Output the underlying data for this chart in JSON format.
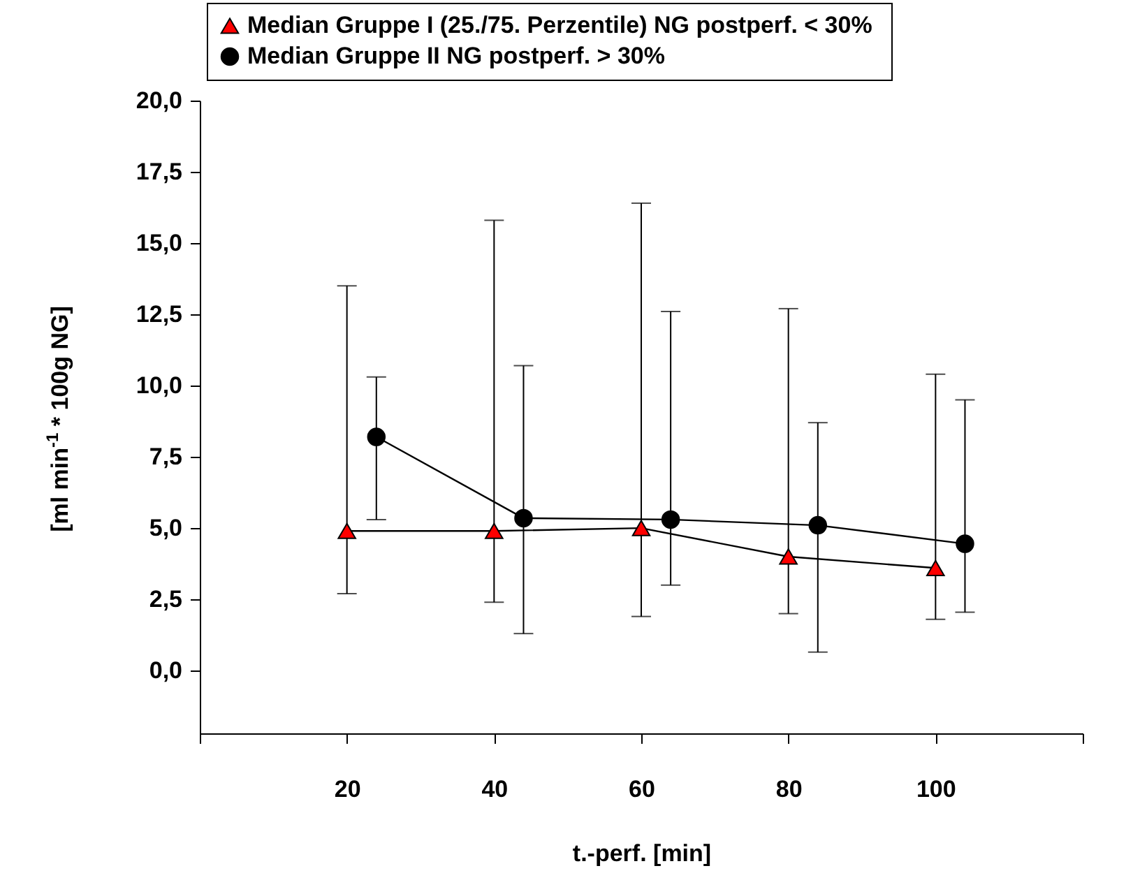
{
  "chart_data": {
    "type": "line",
    "xlabel": "t.-perf. [min]",
    "ylabel": "[ml min$^{-1}$ * 100g NG]",
    "xlim": [
      0,
      120
    ],
    "xticks": [
      {
        "value": 0,
        "label": null
      },
      20,
      40,
      60,
      80,
      100,
      {
        "value": 120,
        "label": null
      }
    ],
    "ylim": [
      -2.2,
      20
    ],
    "yticks": [
      {
        "value": 0,
        "label": "0,0"
      },
      {
        "value": 2.5,
        "label": "2,5"
      },
      {
        "value": 5,
        "label": "5,0"
      },
      {
        "value": 7.5,
        "label": "7,5"
      },
      {
        "value": 10,
        "label": "10,0"
      },
      {
        "value": 12.5,
        "label": "12,5"
      },
      {
        "value": 15,
        "label": "15,0"
      },
      {
        "value": 17.5,
        "label": "17,5"
      },
      {
        "value": 20,
        "label": "20,0"
      }
    ],
    "grid": false,
    "legend": "top",
    "series": [
      {
        "name": "Median Gruppe I (25./75. Perzentile) NG postperf.  < 30%",
        "color": "#ff0000",
        "marker": "triangle",
        "x": [
          20,
          40,
          60,
          80,
          100
        ],
        "values": [
          4.9,
          4.9,
          5.0,
          4.0,
          3.6
        ],
        "errors": [
          [
            2.7,
            13.5
          ],
          [
            2.4,
            15.8
          ],
          [
            1.9,
            16.4
          ],
          [
            2.0,
            12.7
          ],
          [
            1.8,
            10.4
          ]
        ]
      },
      {
        "name": "Median Gruppe II NG postperf.  > 30%",
        "color": "#000000",
        "marker": "circle",
        "x": [
          24,
          44,
          64,
          84,
          104
        ],
        "values": [
          8.2,
          5.35,
          5.3,
          5.1,
          4.45
        ],
        "errors": [
          [
            5.3,
            10.3
          ],
          [
            1.3,
            10.7
          ],
          [
            3.0,
            12.6
          ],
          [
            0.65,
            8.7
          ],
          [
            2.05,
            9.5
          ]
        ]
      }
    ]
  }
}
